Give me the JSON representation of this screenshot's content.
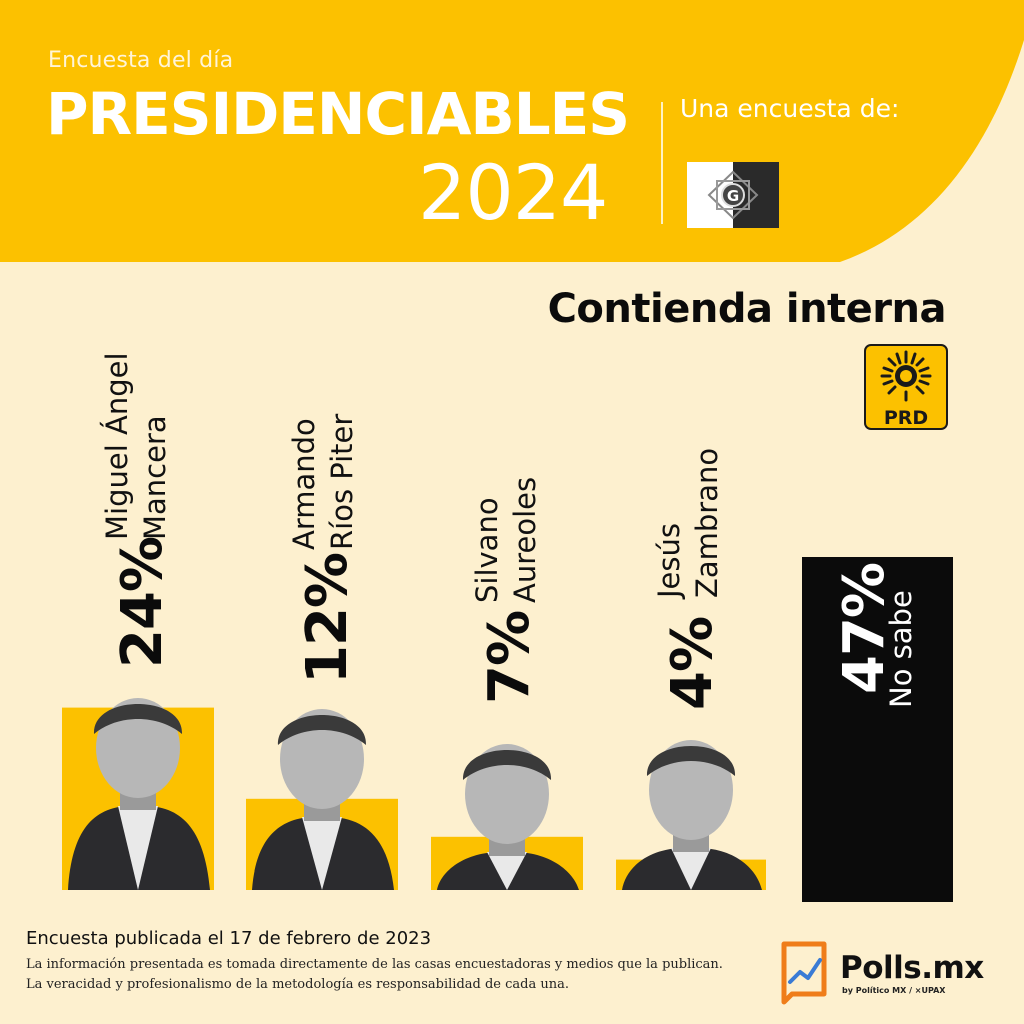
{
  "header": {
    "kicker": "Encuesta del día",
    "title": "PRESIDENCIABLES",
    "year": "2024",
    "by_label": "Una encuesta de:",
    "pollster_icon": "g-emblem-icon",
    "accent_color": "#fcc100"
  },
  "subtitle": "Contienda interna",
  "party": {
    "icon": "prd-sun-logo",
    "text": "PRD"
  },
  "chart_data": {
    "type": "bar",
    "title": "Contienda interna",
    "categories": [
      "Miguel Ángel Mancera",
      "Armando Ríos Piter",
      "Silvano Aureoles",
      "Jesús Zambrano",
      "No sabe"
    ],
    "values": [
      24,
      12,
      7,
      4,
      47
    ],
    "unit": "%",
    "labels": [
      "24%",
      "12%",
      "7%",
      "4%",
      "47%"
    ],
    "bar_colors": [
      "#fcc100",
      "#fcc100",
      "#fcc100",
      "#fcc100",
      "#0b0b0b"
    ]
  },
  "candidates": [
    {
      "name_line1": "Miguel Ángel",
      "name_line2": "Mancera",
      "pct": "24%"
    },
    {
      "name_line1": "Armando",
      "name_line2": "Ríos Piter",
      "pct": "12%"
    },
    {
      "name_line1": "Silvano",
      "name_line2": "Aureoles",
      "pct": "7%"
    },
    {
      "name_line1": "Jesús",
      "name_line2": "Zambrano",
      "pct": "4%"
    }
  ],
  "no_sabe": {
    "pct": "47%",
    "label": "No sabe"
  },
  "footer": {
    "date": "Encuesta publicada el 17 de febrero de 2023",
    "note_line1": "La información presentada es tomada directamente de las casas encuestadoras y medios que la publican.",
    "note_line2": "La veracidad y profesionalismo de la metodología es responsabilidad de cada una.",
    "brand": "Polls.mx",
    "brand_sub": "by Político MX / ⨯UPAX"
  }
}
